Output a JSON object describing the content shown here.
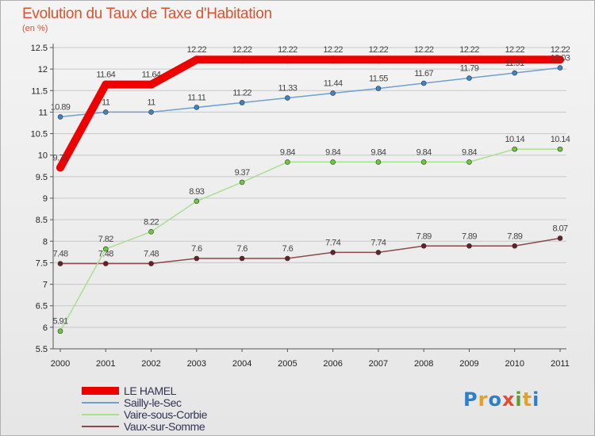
{
  "title": "Evolution du Taux de Taxe d'Habitation",
  "unit": "(en %)",
  "brand": {
    "letters": [
      "P",
      "r",
      "o",
      "x",
      "i",
      "t",
      "i"
    ],
    "colors": [
      "#2a7fd0",
      "#e8a020",
      "#2a7fd0",
      "#e05030",
      "#5aa030",
      "#e8a020",
      "#2a7fd0"
    ]
  },
  "chart_data": {
    "type": "line",
    "title": "Evolution du Taux de Taxe d'Habitation",
    "ylabel": "(en %)",
    "x": [
      "2000",
      "2001",
      "2002",
      "2003",
      "2004",
      "2005",
      "2006",
      "2007",
      "2008",
      "2009",
      "2010",
      "2011"
    ],
    "ylim": [
      5.5,
      12.5
    ],
    "yticks": [
      "5.5",
      "6",
      "6.5",
      "7",
      "7.5",
      "8",
      "8.5",
      "9",
      "9.5",
      "10",
      "10.5",
      "11",
      "11.5",
      "12",
      "12.5"
    ],
    "grid": "horizontal",
    "legend_position": "bottom-left",
    "series": [
      {
        "name": "LE HAMEL",
        "color": "#ee0000",
        "values": [
          9.71,
          11.64,
          11.64,
          12.22,
          12.22,
          12.22,
          12.22,
          12.22,
          12.22,
          12.22,
          12.22,
          12.22
        ],
        "labels": [
          "9.71",
          "11.64",
          "11.64",
          "12.22",
          "12.22",
          "12.22",
          "12.22",
          "12.22",
          "12.22",
          "12.22",
          "12.22",
          "12.22"
        ]
      },
      {
        "name": "Sailly-le-Sec",
        "color": "#6fa0d0",
        "marker": "#3a86c8",
        "values": [
          10.89,
          11,
          11,
          11.11,
          11.22,
          11.33,
          11.44,
          11.55,
          11.67,
          11.79,
          11.91,
          12.03
        ],
        "labels": [
          "10.89",
          "11",
          "11",
          "11.11",
          "11.22",
          "11.33",
          "11.44",
          "11.55",
          "11.67",
          "11.79",
          "11.91",
          "12.03"
        ]
      },
      {
        "name": "Vaire-sous-Corbie",
        "color": "#a8e090",
        "marker": "#6acb3a",
        "values": [
          5.91,
          7.82,
          8.22,
          8.93,
          9.37,
          9.84,
          9.84,
          9.84,
          9.84,
          9.84,
          10.14,
          10.14
        ],
        "labels": [
          "5.91",
          "7.82",
          "8.22",
          "8.93",
          "9.37",
          "9.84",
          "9.84",
          "9.84",
          "9.84",
          "9.84",
          "10.14",
          "10.14"
        ]
      },
      {
        "name": "Vaux-sur-Somme",
        "color": "#8a4a4a",
        "marker": "#6a1f25",
        "values": [
          7.48,
          7.48,
          7.48,
          7.6,
          7.6,
          7.6,
          7.74,
          7.74,
          7.89,
          7.89,
          7.89,
          8.07
        ],
        "labels": [
          "7.48",
          "7.48",
          "7.48",
          "7.6",
          "7.6",
          "7.6",
          "7.74",
          "7.74",
          "7.89",
          "7.89",
          "7.89",
          "8.07"
        ]
      }
    ]
  }
}
